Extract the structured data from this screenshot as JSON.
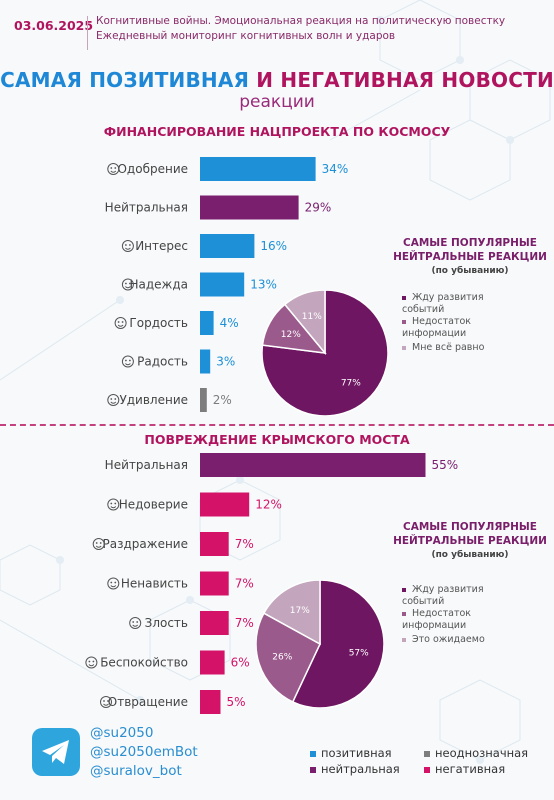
{
  "header": {
    "date": "03.06.2025",
    "line1": "Когнитивные войны. Эмоциональная реакция на политическую повестку",
    "line2": "Ежедневный мониторинг когнитивных волн и ударов"
  },
  "title": {
    "part_a": "САМАЯ ПОЗИТИВНАЯ",
    "part_mid": " И ",
    "part_b": "НЕГАТИВНАЯ НОВОСТИ",
    "subtitle": "реакции"
  },
  "colors": {
    "positive": "#1e90d8",
    "neutral": "#7a1e6e",
    "ambiguous": "#7d7d7d",
    "negative": "#d41368",
    "pie_dark": "#6e1662",
    "pie_mid": "#9a5a8c",
    "pie_light": "#c3a6bd"
  },
  "chart_data": [
    {
      "type": "bar",
      "title": "ФИНАНСИРОВАНИЕ НАЦПРОЕКТА ПО КОСМОСУ",
      "categories": [
        "Одобрение",
        "Нейтральная",
        "Интерес",
        "Надежда",
        "Гордость",
        "Радость",
        "Удивление"
      ],
      "values": [
        34,
        29,
        16,
        13,
        4,
        3,
        2
      ],
      "labels": [
        "34%",
        "29%",
        "16%",
        "13%",
        "4%",
        "3%",
        "2%"
      ],
      "kinds": [
        "positive",
        "neutral",
        "positive",
        "positive",
        "positive",
        "positive",
        "ambiguous"
      ],
      "icons": [
        "heart-eyes-icon",
        "",
        "thinking-icon",
        "praying-hands-icon",
        "trophy-icon",
        "laughing-icon",
        "surprised-icon"
      ]
    },
    {
      "type": "pie",
      "title": "САМЫЕ ПОПУЛЯРНЫЕ НЕЙТРАЛЬНЫЕ РЕАКЦИИ",
      "subtitle": "(по убыванию)",
      "categories": [
        "Жду развития событий",
        "Недостаток информации",
        "Мне всё равно"
      ],
      "values": [
        77,
        12,
        11
      ],
      "labels": [
        "77%",
        "12%",
        "11%"
      ]
    },
    {
      "type": "bar",
      "title": "ПОВРЕЖДЕНИЕ КРЫМСКОГО МОСТА",
      "categories": [
        "Нейтральная",
        "Недоверие",
        "Раздражение",
        "Ненависть",
        "Злость",
        "Беспокойство",
        "Отвращение"
      ],
      "values": [
        55,
        12,
        7,
        7,
        7,
        6,
        5
      ],
      "labels": [
        "55%",
        "12%",
        "7%",
        "7%",
        "7%",
        "6%",
        "5%"
      ],
      "kinds": [
        "neutral",
        "negative",
        "negative",
        "negative",
        "negative",
        "negative",
        "negative"
      ],
      "icons": [
        "",
        "distrust-icon",
        "annoyed-icon",
        "hate-icon",
        "angry-icon",
        "worried-icon",
        "disgust-icon"
      ]
    },
    {
      "type": "pie",
      "title": "САМЫЕ ПОПУЛЯРНЫЕ НЕЙТРАЛЬНЫЕ РЕАКЦИИ",
      "subtitle": "(по убыванию)",
      "categories": [
        "Жду развития событий",
        "Недостаток информации",
        "Это ожидаемо"
      ],
      "values": [
        57,
        26,
        17
      ],
      "labels": [
        "57%",
        "26%",
        "17%"
      ]
    }
  ],
  "footer": {
    "handles": [
      "@su2050",
      "@su2050emBot",
      "@suralov_bot"
    ],
    "legend": [
      "позитивная",
      "неоднозначная",
      "нейтральная",
      "негативная"
    ]
  }
}
